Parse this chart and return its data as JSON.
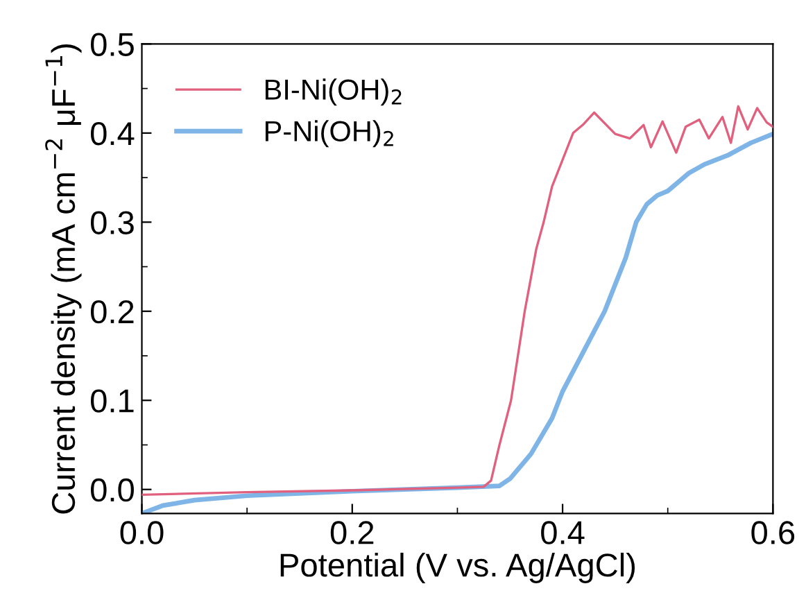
{
  "chart_data": {
    "type": "line",
    "xlabel": "Potential (V vs. Ag/AgCl)",
    "ylabel": "Current density (mA cm$^{−2}$ μF$^{−1}$)",
    "xlim": [
      0,
      0.6
    ],
    "ylim": [
      -0.027,
      0.5
    ],
    "xticks": [
      {
        "value": 0,
        "label": "0.0"
      },
      0.2,
      0.4,
      0.6
    ],
    "yticks": [
      {
        "value": 0,
        "label": "0.0"
      },
      0.1,
      0.2,
      0.3,
      0.4,
      0.5
    ],
    "grid": false,
    "legend": "top left",
    "marker": "none",
    "line_style": "solid",
    "series": [
      {
        "name": "BI-Ni(OH)$_{2}$",
        "color": "#e0607e",
        "x": [
          0,
          0.1,
          0.2,
          0.3,
          0.325,
          0.332,
          0.34,
          0.351,
          0.364,
          0.375,
          0.382,
          0.39,
          0.4,
          0.41,
          0.42,
          0.43,
          0.45,
          0.464,
          0.477,
          0.484,
          0.495,
          0.508,
          0.517,
          0.53,
          0.539,
          0.552,
          0.56,
          0.567,
          0.576,
          0.585,
          0.594,
          0.6
        ],
        "values": [
          -0.006,
          -0.003,
          -0.001,
          0.002,
          0.003,
          0.01,
          0.05,
          0.1,
          0.2,
          0.27,
          0.3,
          0.34,
          0.37,
          0.4,
          0.41,
          0.423,
          0.399,
          0.394,
          0.409,
          0.384,
          0.413,
          0.378,
          0.407,
          0.415,
          0.394,
          0.418,
          0.389,
          0.43,
          0.404,
          0.428,
          0.412,
          0.407
        ]
      },
      {
        "name": "P-Ni(OH)$_{2}$",
        "color": "#7fb5e6",
        "x": [
          0,
          0.02,
          0.05,
          0.1,
          0.2,
          0.3,
          0.34,
          0.35,
          0.37,
          0.39,
          0.4,
          0.42,
          0.44,
          0.46,
          0.47,
          0.48,
          0.49,
          0.5,
          0.52,
          0.535,
          0.557,
          0.579,
          0.6
        ],
        "values": [
          -0.027,
          -0.018,
          -0.012,
          -0.007,
          -0.002,
          0.002,
          0.004,
          0.012,
          0.04,
          0.08,
          0.11,
          0.155,
          0.2,
          0.26,
          0.3,
          0.32,
          0.33,
          0.335,
          0.355,
          0.365,
          0.375,
          0.389,
          0.399
        ]
      }
    ]
  }
}
